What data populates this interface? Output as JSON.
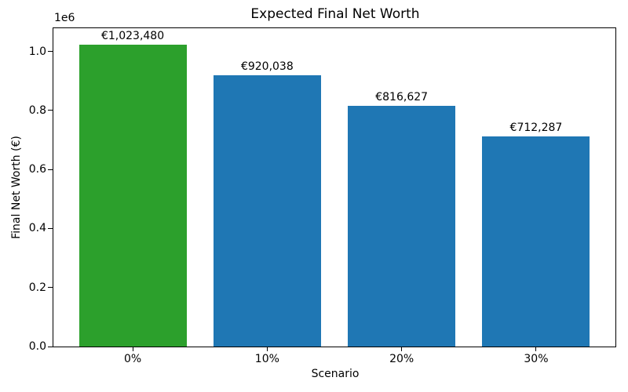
{
  "chart_data": {
    "type": "bar",
    "title": "Expected Final Net Worth",
    "xlabel": "Scenario",
    "ylabel": "Final Net Worth (€)",
    "offset_text": "1e6",
    "categories": [
      "0%",
      "10%",
      "20%",
      "30%"
    ],
    "values": [
      1023480,
      920038,
      816627,
      712287
    ],
    "bar_labels": [
      "€1,023,480",
      "€920,038",
      "€816,627",
      "€712,287"
    ],
    "bar_colors": [
      "#2ca02c",
      "#1f77b4",
      "#1f77b4",
      "#1f77b4"
    ],
    "bar_width": 0.8,
    "xlim": [
      -0.59,
      3.59
    ],
    "ylim": [
      0,
      1079000
    ],
    "yticks": [
      0.0,
      0.2,
      0.4,
      0.6,
      0.8,
      1.0
    ],
    "ytick_scale": 1000000,
    "grid": false,
    "legend": null,
    "colors": {
      "highlight_bar": "#2ca02c",
      "default_bar": "#1f77b4",
      "axis": "#000000",
      "background": "#ffffff"
    }
  }
}
